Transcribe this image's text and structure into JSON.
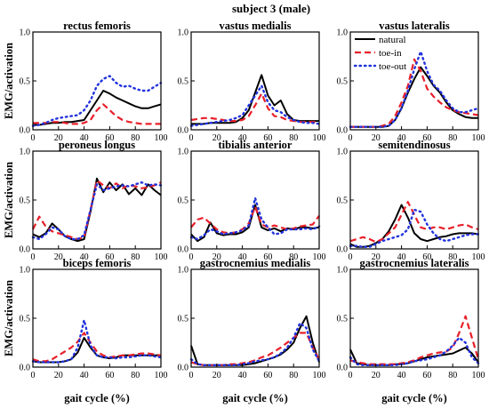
{
  "figure": {
    "title": "subject 3 (male)",
    "xlabel": "gait cycle (%)",
    "ylabel": "EMG/activation"
  },
  "legend": {
    "placement": "top-right panel (vastus lateralis)",
    "entries": [
      {
        "key": "natural",
        "label": "natural"
      },
      {
        "key": "toe_in",
        "label": "toe-in"
      },
      {
        "key": "toe_out",
        "label": "toe-out"
      }
    ]
  },
  "styles": {
    "natural": {
      "color": "#000000",
      "dash": "solid",
      "width": 2
    },
    "toe_in": {
      "color": "#e8202a",
      "dash": "7,4",
      "width": 2.2
    },
    "toe_out": {
      "color": "#2233dd",
      "dash": "1.5,4",
      "width": 2.4
    }
  },
  "chart_data": {
    "type": "line",
    "x": [
      0,
      5,
      10,
      15,
      20,
      25,
      30,
      35,
      40,
      45,
      50,
      55,
      60,
      65,
      70,
      75,
      80,
      85,
      90,
      95,
      100
    ],
    "xlim": [
      0,
      100
    ],
    "ylim": [
      0,
      1
    ],
    "xticks": [
      "0",
      "20",
      "40",
      "60",
      "80",
      "100"
    ],
    "yticks": [
      "0.0",
      "0.5",
      "1.0"
    ],
    "grid": false,
    "panels": [
      {
        "title": "rectus femoris",
        "series": {
          "natural": [
            0.05,
            0.05,
            0.06,
            0.07,
            0.07,
            0.08,
            0.08,
            0.09,
            0.1,
            0.2,
            0.3,
            0.4,
            0.37,
            0.33,
            0.3,
            0.27,
            0.24,
            0.22,
            0.22,
            0.24,
            0.26
          ],
          "toe_in": [
            0.07,
            0.07,
            0.07,
            0.08,
            0.08,
            0.07,
            0.06,
            0.06,
            0.07,
            0.1,
            0.2,
            0.26,
            0.2,
            0.14,
            0.1,
            0.08,
            0.07,
            0.06,
            0.06,
            0.06,
            0.06
          ],
          "toe_out": [
            0.04,
            0.05,
            0.07,
            0.1,
            0.12,
            0.13,
            0.14,
            0.15,
            0.2,
            0.3,
            0.45,
            0.52,
            0.55,
            0.48,
            0.44,
            0.45,
            0.42,
            0.4,
            0.4,
            0.44,
            0.48
          ]
        }
      },
      {
        "title": "vastus medialis",
        "series": {
          "natural": [
            0.06,
            0.06,
            0.06,
            0.07,
            0.07,
            0.07,
            0.07,
            0.08,
            0.12,
            0.2,
            0.38,
            0.56,
            0.35,
            0.25,
            0.3,
            0.16,
            0.1,
            0.09,
            0.09,
            0.09,
            0.09
          ],
          "toe_in": [
            0.1,
            0.11,
            0.12,
            0.12,
            0.11,
            0.1,
            0.09,
            0.09,
            0.1,
            0.14,
            0.25,
            0.37,
            0.22,
            0.14,
            0.13,
            0.1,
            0.09,
            0.08,
            0.08,
            0.08,
            0.08
          ],
          "toe_out": [
            0.04,
            0.05,
            0.06,
            0.07,
            0.08,
            0.09,
            0.1,
            0.12,
            0.15,
            0.25,
            0.35,
            0.45,
            0.28,
            0.2,
            0.18,
            0.13,
            0.1,
            0.08,
            0.07,
            0.07,
            0.06
          ]
        }
      },
      {
        "title": "vastus lateralis",
        "series": {
          "natural": [
            0.03,
            0.03,
            0.03,
            0.03,
            0.03,
            0.03,
            0.04,
            0.1,
            0.22,
            0.38,
            0.52,
            0.64,
            0.55,
            0.45,
            0.38,
            0.28,
            0.2,
            0.16,
            0.13,
            0.12,
            0.12
          ],
          "toe_in": [
            0.03,
            0.03,
            0.03,
            0.03,
            0.03,
            0.04,
            0.06,
            0.14,
            0.28,
            0.45,
            0.72,
            0.6,
            0.42,
            0.34,
            0.28,
            0.23,
            0.2,
            0.18,
            0.17,
            0.16,
            0.15
          ],
          "toe_out": [
            0.03,
            0.03,
            0.03,
            0.03,
            0.03,
            0.03,
            0.04,
            0.1,
            0.22,
            0.4,
            0.62,
            0.8,
            0.6,
            0.46,
            0.4,
            0.3,
            0.22,
            0.18,
            0.18,
            0.2,
            0.22
          ]
        }
      },
      {
        "title": "peroneus longus",
        "series": {
          "natural": [
            0.15,
            0.12,
            0.16,
            0.26,
            0.2,
            0.13,
            0.1,
            0.08,
            0.1,
            0.38,
            0.72,
            0.58,
            0.68,
            0.6,
            0.66,
            0.56,
            0.62,
            0.55,
            0.66,
            0.6,
            0.55
          ],
          "toe_in": [
            0.2,
            0.33,
            0.23,
            0.18,
            0.16,
            0.14,
            0.12,
            0.1,
            0.12,
            0.4,
            0.7,
            0.65,
            0.62,
            0.67,
            0.62,
            0.65,
            0.64,
            0.62,
            0.63,
            0.65,
            0.68
          ],
          "toe_out": [
            0.12,
            0.1,
            0.15,
            0.22,
            0.2,
            0.13,
            0.1,
            0.1,
            0.14,
            0.4,
            0.66,
            0.6,
            0.62,
            0.64,
            0.65,
            0.64,
            0.66,
            0.68,
            0.65,
            0.66,
            0.65
          ]
        }
      },
      {
        "title": "tibialis anterior",
        "series": {
          "natural": [
            0.15,
            0.08,
            0.12,
            0.27,
            0.16,
            0.14,
            0.15,
            0.15,
            0.17,
            0.22,
            0.45,
            0.22,
            0.19,
            0.21,
            0.18,
            0.21,
            0.2,
            0.22,
            0.22,
            0.21,
            0.22
          ],
          "toe_in": [
            0.22,
            0.3,
            0.32,
            0.26,
            0.2,
            0.17,
            0.16,
            0.17,
            0.2,
            0.26,
            0.43,
            0.25,
            0.22,
            0.24,
            0.22,
            0.2,
            0.21,
            0.23,
            0.24,
            0.25,
            0.34
          ],
          "toe_out": [
            0.12,
            0.1,
            0.14,
            0.2,
            0.18,
            0.15,
            0.16,
            0.17,
            0.19,
            0.24,
            0.52,
            0.3,
            0.22,
            0.15,
            0.16,
            0.2,
            0.2,
            0.2,
            0.21,
            0.2,
            0.23
          ]
        }
      },
      {
        "title": "semitendinosus",
        "series": {
          "natural": [
            0.05,
            0.02,
            0.02,
            0.03,
            0.06,
            0.1,
            0.18,
            0.3,
            0.45,
            0.32,
            0.16,
            0.1,
            0.08,
            0.1,
            0.12,
            0.13,
            0.15,
            0.16,
            0.16,
            0.16,
            0.15
          ],
          "toe_in": [
            0.08,
            0.1,
            0.12,
            0.1,
            0.07,
            0.1,
            0.16,
            0.22,
            0.35,
            0.48,
            0.35,
            0.22,
            0.2,
            0.22,
            0.22,
            0.2,
            0.22,
            0.24,
            0.25,
            0.22,
            0.2
          ],
          "toe_out": [
            0.03,
            0.03,
            0.02,
            0.02,
            0.05,
            0.08,
            0.1,
            0.12,
            0.14,
            0.2,
            0.4,
            0.38,
            0.25,
            0.16,
            0.1,
            0.08,
            0.1,
            0.12,
            0.14,
            0.15,
            0.15
          ]
        }
      },
      {
        "title": "biceps femoris",
        "series": {
          "natural": [
            0.06,
            0.05,
            0.05,
            0.05,
            0.05,
            0.06,
            0.08,
            0.15,
            0.3,
            0.2,
            0.12,
            0.1,
            0.09,
            0.1,
            0.12,
            0.12,
            0.12,
            0.12,
            0.12,
            0.12,
            0.12
          ],
          "toe_in": [
            0.08,
            0.06,
            0.06,
            0.08,
            0.12,
            0.16,
            0.2,
            0.26,
            0.35,
            0.25,
            0.16,
            0.12,
            0.1,
            0.11,
            0.12,
            0.12,
            0.13,
            0.14,
            0.14,
            0.13,
            0.12
          ],
          "toe_out": [
            0.06,
            0.05,
            0.05,
            0.05,
            0.05,
            0.06,
            0.08,
            0.2,
            0.48,
            0.22,
            0.12,
            0.1,
            0.1,
            0.09,
            0.1,
            0.1,
            0.11,
            0.12,
            0.12,
            0.11,
            0.1
          ]
        }
      },
      {
        "title": "gastrocnemius medialis",
        "series": {
          "natural": [
            0.22,
            0.03,
            0.02,
            0.02,
            0.02,
            0.02,
            0.02,
            0.02,
            0.02,
            0.03,
            0.04,
            0.06,
            0.08,
            0.1,
            0.13,
            0.18,
            0.25,
            0.4,
            0.52,
            0.25,
            0.05
          ],
          "toe_in": [
            0.05,
            0.03,
            0.02,
            0.02,
            0.02,
            0.02,
            0.03,
            0.03,
            0.04,
            0.05,
            0.07,
            0.1,
            0.12,
            0.16,
            0.2,
            0.25,
            0.3,
            0.35,
            0.35,
            0.2,
            0.08
          ],
          "toe_out": [
            0.08,
            0.03,
            0.02,
            0.02,
            0.02,
            0.02,
            0.02,
            0.02,
            0.03,
            0.04,
            0.06,
            0.07,
            0.08,
            0.1,
            0.14,
            0.2,
            0.3,
            0.45,
            0.4,
            0.18,
            0.06
          ]
        }
      },
      {
        "title": "gastrocnemius lateralis",
        "series": {
          "natural": [
            0.18,
            0.04,
            0.03,
            0.02,
            0.02,
            0.02,
            0.02,
            0.03,
            0.03,
            0.04,
            0.06,
            0.08,
            0.1,
            0.11,
            0.12,
            0.13,
            0.14,
            0.17,
            0.2,
            0.14,
            0.05
          ],
          "toe_in": [
            0.07,
            0.05,
            0.04,
            0.03,
            0.03,
            0.03,
            0.03,
            0.03,
            0.04,
            0.05,
            0.07,
            0.1,
            0.12,
            0.14,
            0.15,
            0.16,
            0.2,
            0.35,
            0.52,
            0.3,
            0.08
          ],
          "toe_out": [
            0.1,
            0.03,
            0.02,
            0.02,
            0.02,
            0.02,
            0.02,
            0.02,
            0.03,
            0.04,
            0.06,
            0.07,
            0.08,
            0.1,
            0.12,
            0.16,
            0.22,
            0.3,
            0.25,
            0.1,
            0.04
          ]
        }
      }
    ]
  }
}
